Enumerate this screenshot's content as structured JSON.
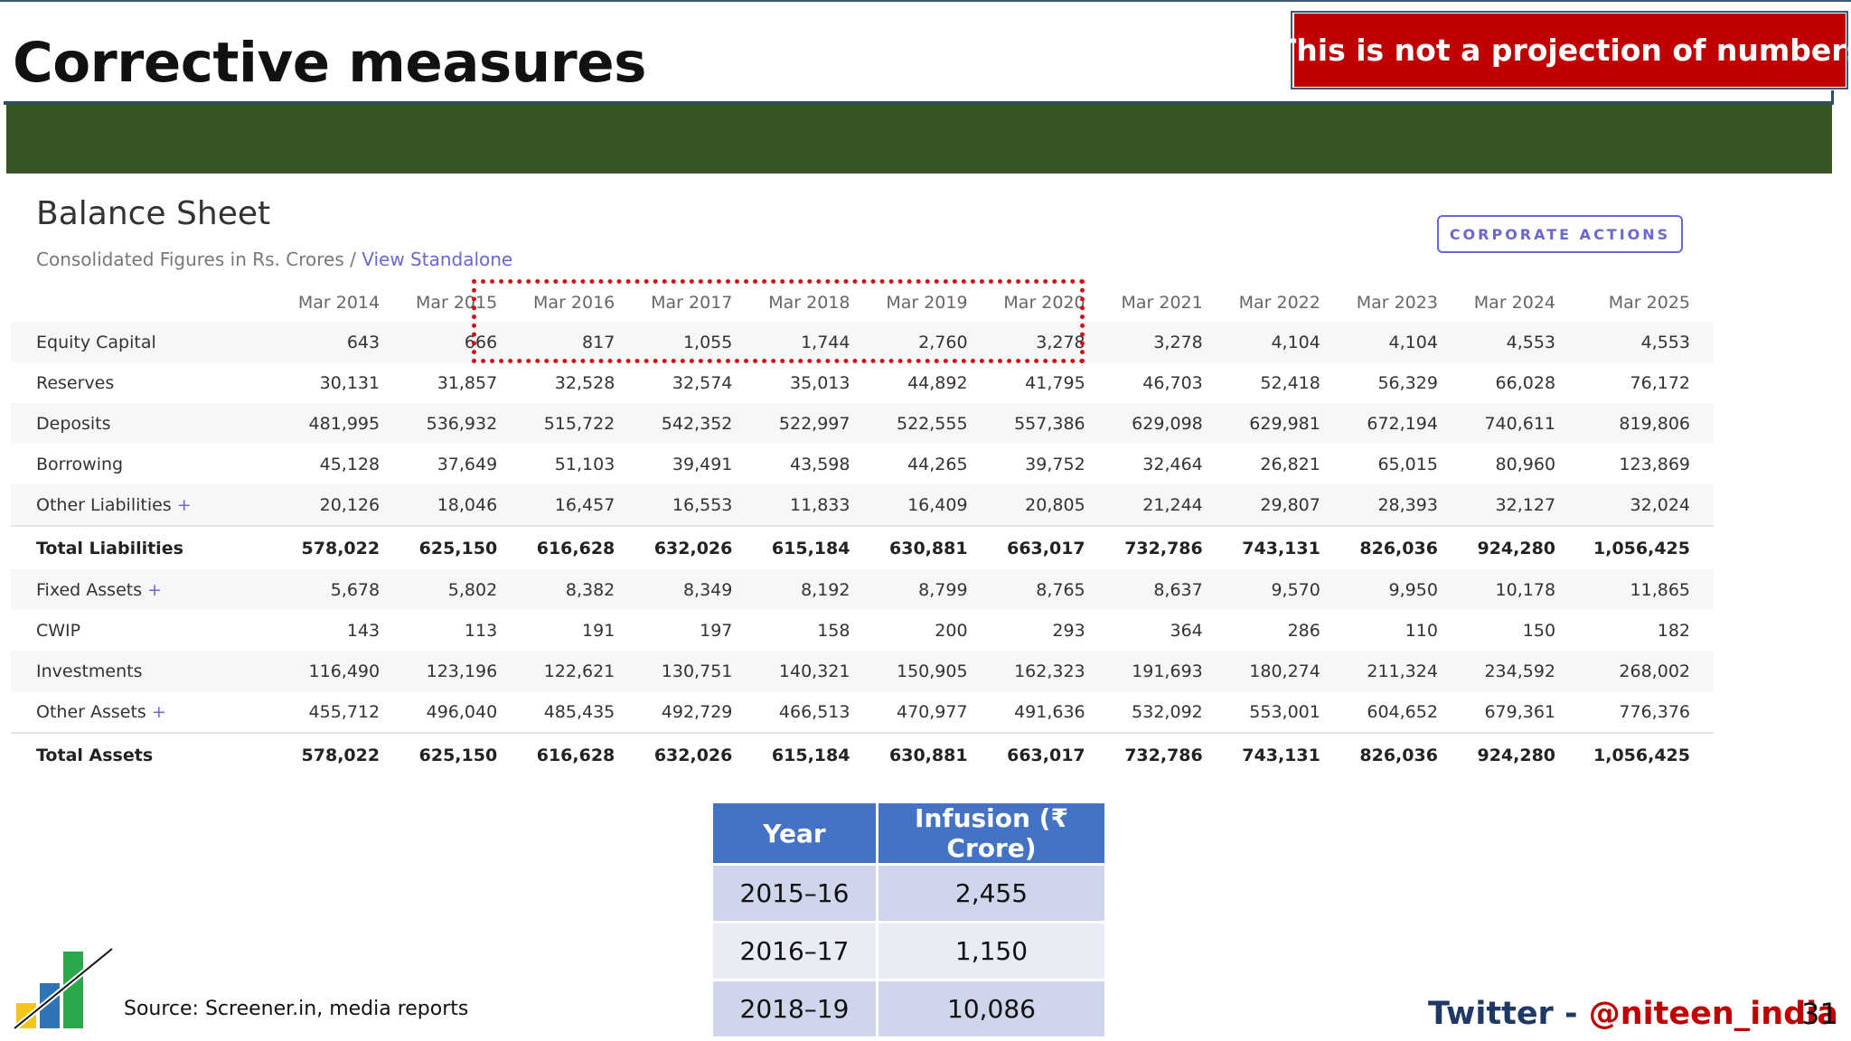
{
  "slide": {
    "title": "Corrective measures",
    "notice": "This is not a projection of numbers",
    "source": "Source: Screener.in, media reports",
    "twitter_label": "Twitter",
    "twitter_sep": " - ",
    "twitter_handle": "@niteen_india",
    "page_number": "31"
  },
  "balance_sheet": {
    "title": "Balance Sheet",
    "subtitle": "Consolidated Figures in Rs. Crores",
    "subtitle_sep": " / ",
    "subtitle_link": "View Standalone",
    "corporate_actions": "CORPORATE ACTIONS",
    "columns": [
      "Mar 2014",
      "Mar 2015",
      "Mar 2016",
      "Mar 2017",
      "Mar 2018",
      "Mar 2019",
      "Mar 2020",
      "Mar 2021",
      "Mar 2022",
      "Mar 2023",
      "Mar 2024",
      "Mar 2025"
    ],
    "rows": [
      {
        "label": "Equity Capital",
        "plus": "",
        "values": [
          "643",
          "666",
          "817",
          "1,055",
          "1,744",
          "2,760",
          "3,278",
          "3,278",
          "4,104",
          "4,104",
          "4,553",
          "4,553"
        ]
      },
      {
        "label": "Reserves",
        "plus": "",
        "values": [
          "30,131",
          "31,857",
          "32,528",
          "32,574",
          "35,013",
          "44,892",
          "41,795",
          "46,703",
          "52,418",
          "56,329",
          "66,028",
          "76,172"
        ]
      },
      {
        "label": "Deposits",
        "plus": "",
        "values": [
          "481,995",
          "536,932",
          "515,722",
          "542,352",
          "522,997",
          "522,555",
          "557,386",
          "629,098",
          "629,981",
          "672,194",
          "740,611",
          "819,806"
        ]
      },
      {
        "label": "Borrowing",
        "plus": "",
        "values": [
          "45,128",
          "37,649",
          "51,103",
          "39,491",
          "43,598",
          "44,265",
          "39,752",
          "32,464",
          "26,821",
          "65,015",
          "80,960",
          "123,869"
        ]
      },
      {
        "label": "Other Liabilities",
        "plus": "+",
        "values": [
          "20,126",
          "18,046",
          "16,457",
          "16,553",
          "11,833",
          "16,409",
          "20,805",
          "21,244",
          "29,807",
          "28,393",
          "32,127",
          "32,024"
        ]
      },
      {
        "label": "Total Liabilities",
        "plus": "",
        "values": [
          "578,022",
          "625,150",
          "616,628",
          "632,026",
          "615,184",
          "630,881",
          "663,017",
          "732,786",
          "743,131",
          "826,036",
          "924,280",
          "1,056,425"
        ]
      },
      {
        "label": "Fixed Assets",
        "plus": "+",
        "values": [
          "5,678",
          "5,802",
          "8,382",
          "8,349",
          "8,192",
          "8,799",
          "8,765",
          "8,637",
          "9,570",
          "9,950",
          "10,178",
          "11,865"
        ]
      },
      {
        "label": "CWIP",
        "plus": "",
        "values": [
          "143",
          "113",
          "191",
          "197",
          "158",
          "200",
          "293",
          "364",
          "286",
          "110",
          "150",
          "182"
        ]
      },
      {
        "label": "Investments",
        "plus": "",
        "values": [
          "116,490",
          "123,196",
          "122,621",
          "130,751",
          "140,321",
          "150,905",
          "162,323",
          "191,693",
          "180,274",
          "211,324",
          "234,592",
          "268,002"
        ]
      },
      {
        "label": "Other Assets",
        "plus": "+",
        "values": [
          "455,712",
          "496,040",
          "485,435",
          "492,729",
          "466,513",
          "470,977",
          "491,636",
          "532,092",
          "553,001",
          "604,652",
          "679,361",
          "776,376"
        ]
      },
      {
        "label": "Total Assets",
        "plus": "",
        "values": [
          "578,022",
          "625,150",
          "616,628",
          "632,026",
          "615,184",
          "630,881",
          "663,017",
          "732,786",
          "743,131",
          "826,036",
          "924,280",
          "1,056,425"
        ]
      }
    ]
  },
  "infusion": {
    "headers": [
      "Year",
      "Infusion (₹ Crore)"
    ],
    "rows": [
      [
        "2015–16",
        "2,455"
      ],
      [
        "2016–17",
        "1,150"
      ],
      [
        "2018–19",
        "10,086"
      ]
    ]
  },
  "colors": {
    "band": "#375623",
    "notice": "#c00000",
    "table_header": "#4472c4",
    "accent_link": "#6a67ce",
    "highlight_box": "#d41111"
  }
}
